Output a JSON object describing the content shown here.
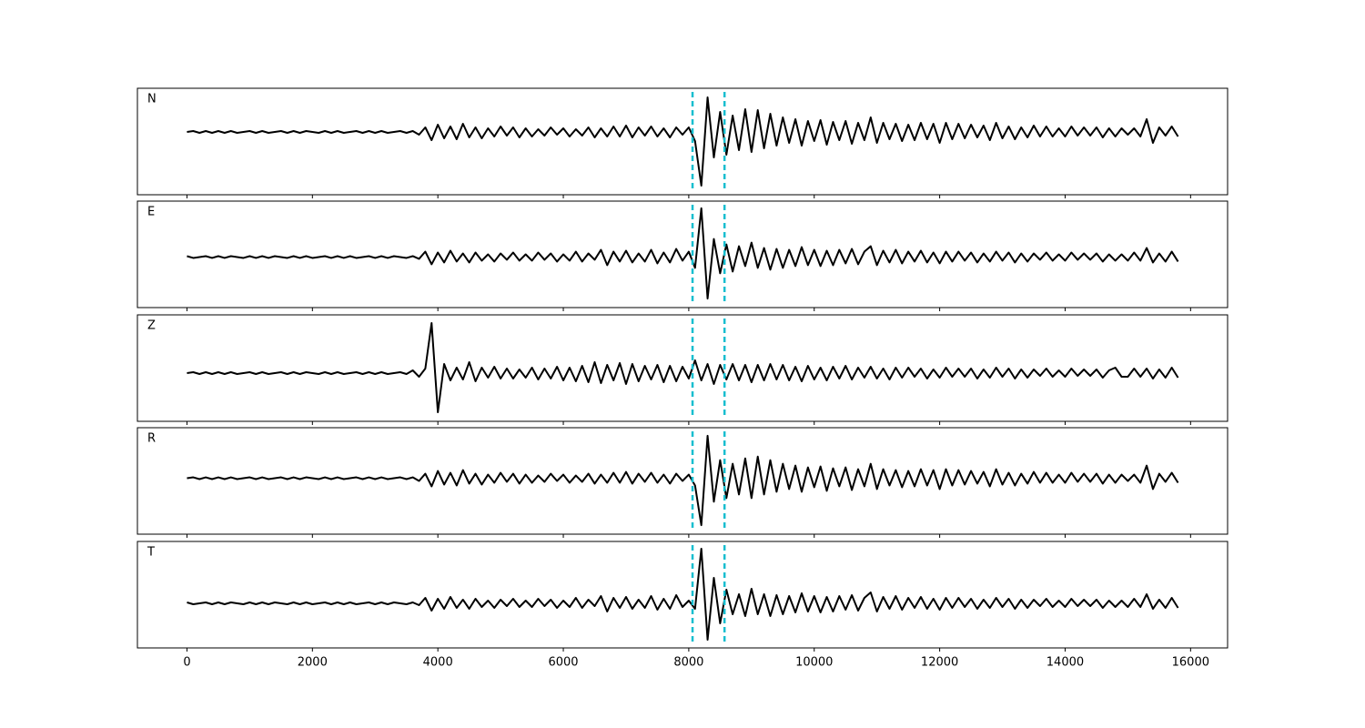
{
  "chart_data": {
    "type": "line",
    "xlim": [
      -790,
      16590
    ],
    "xticks": [
      0,
      2000,
      4000,
      6000,
      8000,
      10000,
      12000,
      14000,
      16000
    ],
    "x": [
      0,
      100,
      200,
      300,
      400,
      500,
      600,
      700,
      800,
      900,
      1000,
      1100,
      1200,
      1300,
      1400,
      1500,
      1600,
      1700,
      1800,
      1900,
      2000,
      2100,
      2200,
      2300,
      2400,
      2500,
      2600,
      2700,
      2800,
      2900,
      3000,
      3100,
      3200,
      3300,
      3400,
      3500,
      3600,
      3700,
      3800,
      3900,
      4000,
      4100,
      4200,
      4300,
      4400,
      4500,
      4600,
      4700,
      4800,
      4900,
      5000,
      5100,
      5200,
      5300,
      5400,
      5500,
      5600,
      5700,
      5800,
      5900,
      6000,
      6100,
      6200,
      6300,
      6400,
      6500,
      6600,
      6700,
      6800,
      6900,
      7000,
      7100,
      7200,
      7300,
      7400,
      7500,
      7600,
      7700,
      7800,
      7900,
      8000,
      8100,
      8200,
      8300,
      8400,
      8500,
      8600,
      8700,
      8800,
      8900,
      9000,
      9100,
      9200,
      9300,
      9400,
      9500,
      9600,
      9700,
      9800,
      9900,
      10000,
      10100,
      10200,
      10300,
      10400,
      10500,
      10600,
      10700,
      10800,
      10900,
      11000,
      11100,
      11200,
      11300,
      11400,
      11500,
      11600,
      11700,
      11800,
      11900,
      12000,
      12100,
      12200,
      12300,
      12400,
      12500,
      12600,
      12700,
      12800,
      12900,
      13000,
      13100,
      13200,
      13300,
      13400,
      13500,
      13600,
      13700,
      13800,
      13900,
      14000,
      14100,
      14200,
      14300,
      14400,
      14500,
      14600,
      14700,
      14800,
      14900,
      15000,
      15100,
      15200,
      15300,
      15400,
      15500,
      15600,
      15700,
      15800
    ],
    "vlines": [
      8060,
      8570
    ],
    "vline_color": "#17becf",
    "color": "#000000",
    "panels": [
      {
        "label": "N",
        "ylim": [
          -69,
          48
        ],
        "values": [
          0,
          1,
          -1,
          1,
          -1,
          1,
          -1,
          1,
          -1,
          0,
          1,
          -1,
          1,
          -1,
          0,
          1,
          -1,
          1,
          -1,
          1,
          0,
          -1,
          1,
          -1,
          1,
          -1,
          0,
          1,
          -1,
          1,
          -1,
          1,
          -1,
          0,
          1,
          -1,
          1,
          -3,
          5,
          -9,
          8,
          -7,
          6,
          -8,
          9,
          -6,
          5,
          -7,
          4,
          -5,
          6,
          -4,
          5,
          -6,
          4,
          -5,
          3,
          -4,
          5,
          -3,
          4,
          -5,
          3,
          -4,
          5,
          -6,
          4,
          -5,
          6,
          -5,
          7,
          -6,
          5,
          -4,
          6,
          -5,
          4,
          -6,
          5,
          -3,
          5,
          -10,
          -59,
          38,
          -28,
          22,
          -25,
          18,
          -20,
          25,
          -22,
          24,
          -18,
          20,
          -15,
          16,
          -12,
          14,
          -15,
          12,
          -10,
          13,
          -14,
          11,
          -9,
          12,
          -13,
          10,
          -9,
          16,
          -12,
          10,
          -8,
          9,
          -10,
          8,
          -9,
          10,
          -8,
          9,
          -12,
          10,
          -8,
          9,
          -7,
          8,
          -6,
          7,
          -9,
          10,
          -7,
          6,
          -8,
          5,
          -6,
          7,
          -5,
          6,
          -5,
          4,
          -5,
          6,
          -4,
          5,
          -4,
          5,
          -6,
          4,
          -5,
          4,
          -3,
          4,
          -5,
          14,
          -12,
          5,
          -4,
          6,
          -5
        ]
      },
      {
        "label": "E",
        "ylim": [
          -56,
          62
        ],
        "values": [
          1,
          -1,
          0,
          1,
          -1,
          1,
          -1,
          1,
          0,
          -1,
          1,
          -1,
          1,
          -1,
          1,
          0,
          -1,
          1,
          -1,
          1,
          -1,
          0,
          1,
          -1,
          1,
          -1,
          1,
          -1,
          0,
          1,
          -1,
          1,
          -1,
          1,
          0,
          -1,
          1,
          -2,
          6,
          -8,
          5,
          -6,
          7,
          -5,
          4,
          -6,
          5,
          -4,
          3,
          -5,
          4,
          -3,
          5,
          -4,
          3,
          -4,
          5,
          -3,
          4,
          -5,
          3,
          -4,
          6,
          -5,
          4,
          -3,
          8,
          -9,
          6,
          -5,
          7,
          -6,
          4,
          -5,
          8,
          -7,
          5,
          -6,
          9,
          -4,
          6,
          -12,
          54,
          -46,
          20,
          -18,
          14,
          -16,
          12,
          -10,
          16,
          -12,
          10,
          -14,
          9,
          -12,
          8,
          -10,
          11,
          -9,
          8,
          -10,
          7,
          -9,
          8,
          -7,
          9,
          -8,
          6,
          12,
          -9,
          7,
          -6,
          8,
          -7,
          6,
          -5,
          7,
          -6,
          5,
          -7,
          6,
          -5,
          6,
          -4,
          5,
          -6,
          4,
          -5,
          6,
          -4,
          5,
          -6,
          4,
          -5,
          4,
          -3,
          5,
          -4,
          3,
          -4,
          5,
          -3,
          4,
          -3,
          4,
          -5,
          3,
          -4,
          3,
          -4,
          5,
          -4,
          10,
          -6,
          4,
          -5,
          6,
          -5
        ]
      },
      {
        "label": "Z",
        "ylim": [
          -53,
          64
        ],
        "values": [
          0,
          1,
          -1,
          1,
          -1,
          1,
          -1,
          1,
          -1,
          0,
          1,
          -1,
          1,
          -1,
          0,
          1,
          -1,
          1,
          -1,
          1,
          0,
          -1,
          1,
          -1,
          1,
          -1,
          0,
          1,
          -1,
          1,
          -1,
          1,
          -1,
          0,
          1,
          -1,
          3,
          -4,
          5,
          55,
          -43,
          10,
          -8,
          6,
          -7,
          12,
          -9,
          6,
          -5,
          7,
          -6,
          5,
          -6,
          4,
          -5,
          6,
          -7,
          5,
          -6,
          7,
          -8,
          6,
          -9,
          8,
          -10,
          12,
          -11,
          9,
          -8,
          11,
          -12,
          10,
          -9,
          8,
          -7,
          9,
          -10,
          8,
          -9,
          7,
          -6,
          14,
          -8,
          10,
          -12,
          9,
          -7,
          10,
          -8,
          9,
          -10,
          9,
          -8,
          10,
          -7,
          9,
          -8,
          7,
          -9,
          8,
          -7,
          6,
          -8,
          7,
          -6,
          8,
          -7,
          6,
          -5,
          7,
          -6,
          5,
          -7,
          6,
          -5,
          6,
          -4,
          5,
          -6,
          4,
          -5,
          6,
          -4,
          5,
          -4,
          5,
          -6,
          4,
          -5,
          6,
          -4,
          5,
          -6,
          4,
          -5,
          4,
          -3,
          5,
          -4,
          3,
          -4,
          5,
          -3,
          4,
          -3,
          4,
          -5,
          3,
          6,
          -4,
          -4,
          5,
          -4,
          5,
          -6,
          4,
          -5,
          6,
          -5
        ]
      },
      {
        "label": "R",
        "ylim": [
          -62,
          56
        ],
        "values": [
          0,
          1,
          -1,
          1,
          -1,
          1,
          -1,
          1,
          -1,
          0,
          1,
          -1,
          1,
          -1,
          0,
          1,
          -1,
          1,
          -1,
          1,
          0,
          -1,
          1,
          -1,
          1,
          -1,
          0,
          1,
          -1,
          1,
          -1,
          1,
          -1,
          0,
          1,
          -1,
          1,
          -3,
          5,
          -9,
          8,
          -7,
          6,
          -8,
          9,
          -6,
          5,
          -7,
          4,
          -5,
          6,
          -4,
          5,
          -6,
          4,
          -5,
          3,
          -4,
          5,
          -3,
          4,
          -5,
          3,
          -4,
          5,
          -6,
          4,
          -5,
          6,
          -5,
          7,
          -6,
          5,
          -4,
          6,
          -5,
          4,
          -6,
          5,
          -3,
          4,
          -8,
          -52,
          47,
          -26,
          20,
          -22,
          16,
          -18,
          22,
          -22,
          24,
          -18,
          20,
          -15,
          16,
          -12,
          14,
          -15,
          12,
          -10,
          13,
          -14,
          11,
          -9,
          12,
          -13,
          10,
          -9,
          16,
          -12,
          10,
          -8,
          9,
          -10,
          8,
          -9,
          10,
          -8,
          9,
          -12,
          10,
          -8,
          9,
          -7,
          8,
          -6,
          7,
          -9,
          10,
          -7,
          6,
          -8,
          5,
          -6,
          7,
          -5,
          6,
          -5,
          4,
          -5,
          6,
          -4,
          5,
          -4,
          5,
          -6,
          4,
          -5,
          4,
          -3,
          4,
          -5,
          14,
          -12,
          5,
          -4,
          6,
          -5
        ]
      },
      {
        "label": "T",
        "ylim": [
          -49,
          68
        ],
        "values": [
          1,
          -1,
          0,
          1,
          -1,
          1,
          -1,
          1,
          0,
          -1,
          1,
          -1,
          1,
          -1,
          1,
          0,
          -1,
          1,
          -1,
          1,
          -1,
          0,
          1,
          -1,
          1,
          -1,
          1,
          -1,
          0,
          1,
          -1,
          1,
          -1,
          1,
          0,
          -1,
          1,
          -2,
          6,
          -8,
          5,
          -6,
          7,
          -5,
          4,
          -6,
          5,
          -4,
          3,
          -5,
          4,
          -3,
          5,
          -4,
          3,
          -4,
          5,
          -3,
          4,
          -5,
          3,
          -4,
          6,
          -5,
          4,
          -3,
          8,
          -9,
          6,
          -5,
          7,
          -6,
          4,
          -5,
          8,
          -7,
          5,
          -6,
          9,
          -4,
          3,
          -6,
          60,
          -40,
          28,
          -22,
          15,
          -12,
          10,
          -14,
          16,
          -12,
          10,
          -14,
          9,
          -12,
          8,
          -10,
          11,
          -9,
          8,
          -10,
          7,
          -9,
          8,
          -7,
          9,
          -8,
          6,
          12,
          -9,
          7,
          -6,
          8,
          -7,
          6,
          -5,
          7,
          -6,
          5,
          -7,
          6,
          -5,
          6,
          -4,
          5,
          -6,
          4,
          -5,
          6,
          -4,
          5,
          -6,
          4,
          -5,
          4,
          -3,
          5,
          -4,
          3,
          -4,
          5,
          -3,
          4,
          -3,
          4,
          -5,
          3,
          -4,
          3,
          -4,
          5,
          -4,
          10,
          -6,
          4,
          -5,
          6,
          -5
        ]
      }
    ]
  }
}
